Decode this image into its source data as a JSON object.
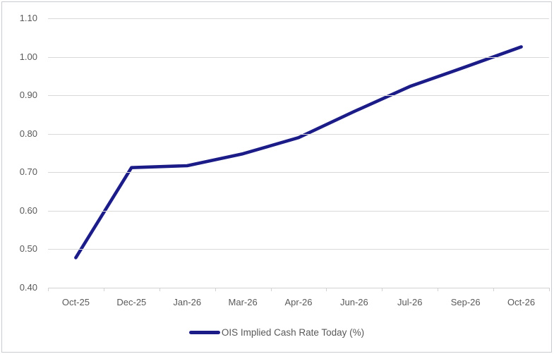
{
  "chart_data": {
    "type": "line",
    "title": "",
    "xlabel": "",
    "ylabel": "",
    "categories": [
      "Oct-25",
      "Dec-25",
      "Jan-26",
      "Mar-26",
      "Apr-26",
      "Jun-26",
      "Jul-26",
      "Sep-26",
      "Oct-26"
    ],
    "series": [
      {
        "name": "OIS Implied Cash Rate Today (%)",
        "values": [
          0.478,
          0.712,
          0.717,
          0.748,
          0.79,
          0.858,
          0.923,
          0.974,
          1.026
        ]
      }
    ],
    "legend": "OIS Implied Cash Rate Today (%)",
    "legend_position": "bottom",
    "ylim": [
      0.4,
      1.1
    ],
    "ytick_step": 0.1,
    "ytick_labels": [
      "0.40",
      "0.50",
      "0.60",
      "0.70",
      "0.80",
      "0.90",
      "1.00",
      "1.10"
    ],
    "grid": true,
    "colors": {
      "line": "#1c1c89",
      "axis_text": "#595959",
      "gridline": "#d9d9d9",
      "frame_border": "#c9cdd2",
      "background": "#ffffff"
    }
  }
}
